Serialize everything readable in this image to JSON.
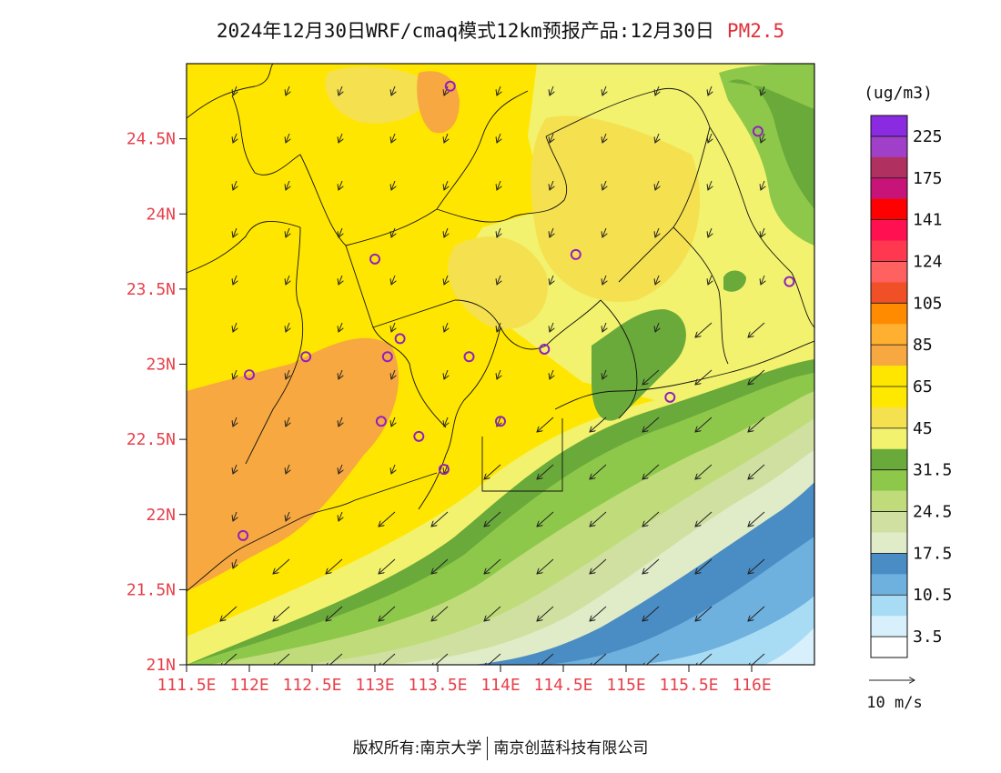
{
  "title": {
    "main": "2024年12月30日WRF/cmaq模式12km预报产品:12月30日",
    "pollutant": "PM2.5"
  },
  "map": {
    "lat_ticks": [
      "24.5N",
      "24N",
      "23.5N",
      "23N",
      "22.5N",
      "22N",
      "21.5N",
      "21N"
    ],
    "lon_ticks": [
      "111.5E",
      "112E",
      "112.5E",
      "113E",
      "113.5E",
      "114E",
      "114.5E",
      "115E",
      "115.5E",
      "116E"
    ],
    "lon_range": [
      111.5,
      116.5
    ],
    "lat_range": [
      21.0,
      25.0
    ],
    "tick_color": "#e8404a"
  },
  "colorbar": {
    "unit": "(ug/m3)",
    "labels": [
      "225",
      "175",
      "141",
      "124",
      "105",
      "85",
      "65",
      "45",
      "31.5",
      "24.5",
      "17.5",
      "10.5",
      "3.5"
    ],
    "colors": [
      "#8a2be2",
      "#a040c8",
      "#b03060",
      "#c81478",
      "#ff0000",
      "#ff1050",
      "#ff3850",
      "#ff6060",
      "#f05028",
      "#ff8c00",
      "#ffb030",
      "#f7a840",
      "#ffe600",
      "#ffe800",
      "#f5e050",
      "#f2f26e",
      "#6aaa3a",
      "#8ec84a",
      "#c0dc7a",
      "#d0e0a0",
      "#e0ecc8",
      "#4a8cc4",
      "#6eb0de",
      "#a8dcf4",
      "#d8f0fc",
      "#ffffff"
    ]
  },
  "wind_legend": {
    "label": "10 m/s"
  },
  "stations": [
    {
      "lon": 113.6,
      "lat": 24.85
    },
    {
      "lon": 116.05,
      "lat": 24.55
    },
    {
      "lon": 113.0,
      "lat": 23.7
    },
    {
      "lon": 114.6,
      "lat": 23.73
    },
    {
      "lon": 116.3,
      "lat": 23.55
    },
    {
      "lon": 113.2,
      "lat": 23.17
    },
    {
      "lon": 112.45,
      "lat": 23.05
    },
    {
      "lon": 113.1,
      "lat": 23.05
    },
    {
      "lon": 113.75,
      "lat": 23.05
    },
    {
      "lon": 114.35,
      "lat": 23.1
    },
    {
      "lon": 112.0,
      "lat": 22.93
    },
    {
      "lon": 115.35,
      "lat": 22.78
    },
    {
      "lon": 113.05,
      "lat": 22.62
    },
    {
      "lon": 113.35,
      "lat": 22.52
    },
    {
      "lon": 114.0,
      "lat": 22.62
    },
    {
      "lon": 113.55,
      "lat": 22.3
    },
    {
      "lon": 111.95,
      "lat": 21.86
    }
  ],
  "footer": {
    "left": "版权所有:南京大学",
    "right": "南京创蓝科技有限公司"
  }
}
